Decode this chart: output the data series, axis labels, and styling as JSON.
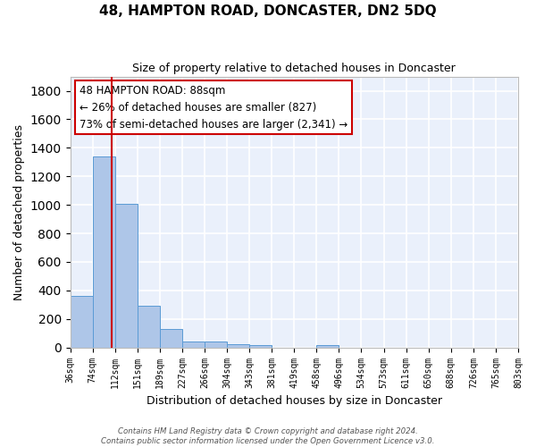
{
  "title": "48, HAMPTON ROAD, DONCASTER, DN2 5DQ",
  "subtitle": "Size of property relative to detached houses in Doncaster",
  "xlabel": "Distribution of detached houses by size in Doncaster",
  "ylabel": "Number of detached properties",
  "bin_labels": [
    "36sqm",
    "74sqm",
    "112sqm",
    "151sqm",
    "189sqm",
    "227sqm",
    "266sqm",
    "304sqm",
    "343sqm",
    "381sqm",
    "419sqm",
    "458sqm",
    "496sqm",
    "534sqm",
    "573sqm",
    "611sqm",
    "650sqm",
    "688sqm",
    "726sqm",
    "765sqm",
    "803sqm"
  ],
  "bar_heights": [
    360,
    1340,
    1005,
    290,
    130,
    40,
    40,
    25,
    20,
    0,
    0,
    20,
    0,
    0,
    0,
    0,
    0,
    0,
    0,
    0
  ],
  "bar_color": "#aec6e8",
  "bar_edge_color": "#5b9bd5",
  "property_line_x": 2,
  "property_line_color": "#cc0000",
  "annotation_text": "48 HAMPTON ROAD: 88sqm\n← 26% of detached houses are smaller (827)\n73% of semi-detached houses are larger (2,341) →",
  "annotation_box_color": "#ffffff",
  "annotation_box_edge_color": "#cc0000",
  "ylim": [
    0,
    1900
  ],
  "yticks": [
    0,
    200,
    400,
    600,
    800,
    1000,
    1200,
    1400,
    1600,
    1800
  ],
  "background_color": "#eaf0fb",
  "grid_color": "#ffffff",
  "fig_facecolor": "#ffffff",
  "footer_text": "Contains HM Land Registry data © Crown copyright and database right 2024.\nContains public sector information licensed under the Open Government Licence v3.0."
}
